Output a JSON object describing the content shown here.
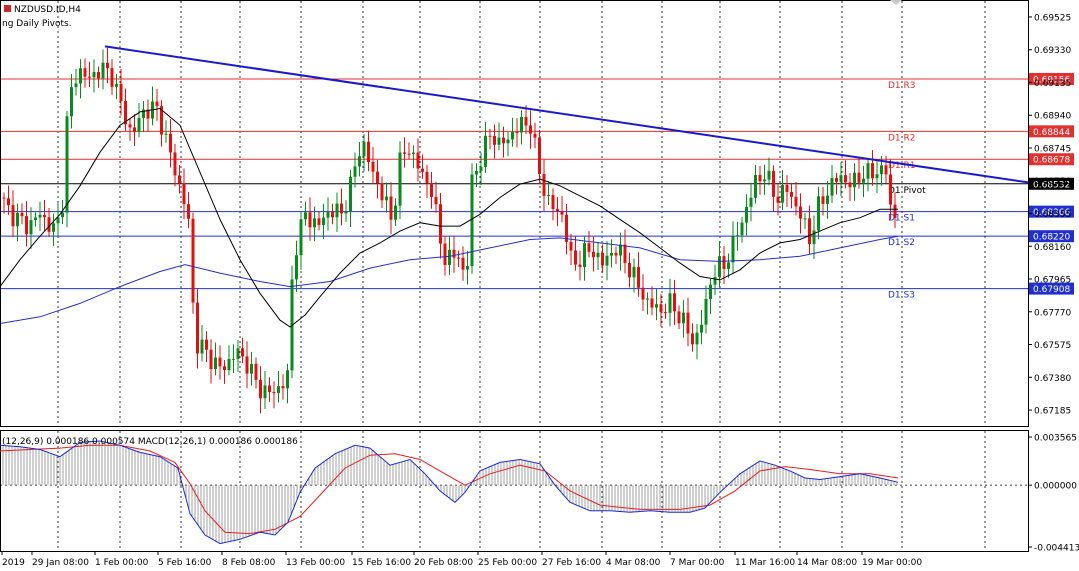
{
  "window": {
    "symbol_title": "NZDUSD.ID,H4",
    "indicator_title": "ng Daily Pivots."
  },
  "colors": {
    "background": "#ffffff",
    "bull_candle": "#0a8a1e",
    "bear_candle": "#e01010",
    "resistance_line": "#e03030",
    "support_line": "#2030d0",
    "pivot_line": "#000000",
    "trendline": "#1a1ac8",
    "ma_fast": "#000000",
    "ma_slow": "#2430c0",
    "macd_line": "#1a2ad0",
    "signal_line": "#e02020",
    "histogram": "#a0a0a0"
  },
  "chart_data": [
    {
      "type": "candlestick",
      "title": "NZDUSD.ID,H4",
      "ylim": [
        0.6709,
        0.6962
      ],
      "y_ticks": [
        "0.69525",
        "0.69330",
        "0.69135",
        "0.68940",
        "0.68745",
        "0.68550",
        "0.68355",
        "0.68160",
        "0.67965",
        "0.67770",
        "0.67575",
        "0.67380",
        "0.67185"
      ],
      "x_tick_labels": [
        "2019",
        "29 Jan 08:00",
        "1 Feb 00:00",
        "5 Feb 16:00",
        "8 Feb 08:00",
        "13 Feb 00:00",
        "15 Feb 16:00",
        "20 Feb 08:00",
        "25 Feb 00:00",
        "27 Feb 16:00",
        "4 Mar 08:00",
        "7 Mar 00:00",
        "11 Mar 16:00",
        "14 Mar 08:00",
        "19 Mar 00:00"
      ],
      "price_path": [
        [
          0,
          0.6845
        ],
        [
          8,
          0.6838
        ],
        [
          18,
          0.6832
        ],
        [
          28,
          0.6828
        ],
        [
          40,
          0.6835
        ],
        [
          55,
          0.6825
        ],
        [
          62,
          0.6838
        ],
        [
          68,
          0.69
        ],
        [
          78,
          0.6922
        ],
        [
          88,
          0.6915
        ],
        [
          100,
          0.6922
        ],
        [
          112,
          0.6918
        ],
        [
          122,
          0.6898
        ],
        [
          132,
          0.6882
        ],
        [
          145,
          0.6898
        ],
        [
          158,
          0.6897
        ],
        [
          168,
          0.6875
        ],
        [
          178,
          0.6855
        ],
        [
          188,
          0.6835
        ],
        [
          195,
          0.676
        ],
        [
          210,
          0.675
        ],
        [
          222,
          0.6742
        ],
        [
          235,
          0.6753
        ],
        [
          246,
          0.6748
        ],
        [
          258,
          0.6732
        ],
        [
          272,
          0.6728
        ],
        [
          288,
          0.6738
        ],
        [
          293,
          0.681
        ],
        [
          305,
          0.6835
        ],
        [
          318,
          0.6828
        ],
        [
          330,
          0.6838
        ],
        [
          342,
          0.6835
        ],
        [
          352,
          0.6855
        ],
        [
          362,
          0.688
        ],
        [
          372,
          0.686
        ],
        [
          382,
          0.6848
        ],
        [
          393,
          0.6828
        ],
        [
          398,
          0.6865
        ],
        [
          410,
          0.6875
        ],
        [
          422,
          0.6858
        ],
        [
          432,
          0.685
        ],
        [
          442,
          0.6812
        ],
        [
          452,
          0.6808
        ],
        [
          460,
          0.6812
        ],
        [
          466,
          0.679
        ],
        [
          472,
          0.6855
        ],
        [
          482,
          0.687
        ],
        [
          492,
          0.6885
        ],
        [
          500,
          0.6875
        ],
        [
          510,
          0.6882
        ],
        [
          520,
          0.6888
        ],
        [
          530,
          0.689
        ],
        [
          540,
          0.6858
        ],
        [
          550,
          0.684
        ],
        [
          562,
          0.6835
        ],
        [
          572,
          0.6805
        ],
        [
          582,
          0.681
        ],
        [
          592,
          0.6815
        ],
        [
          602,
          0.6805
        ],
        [
          614,
          0.6815
        ],
        [
          625,
          0.6808
        ],
        [
          636,
          0.6795
        ],
        [
          648,
          0.6782
        ],
        [
          660,
          0.6778
        ],
        [
          672,
          0.6782
        ],
        [
          684,
          0.677
        ],
        [
          694,
          0.6758
        ],
        [
          704,
          0.6775
        ],
        [
          712,
          0.68
        ],
        [
          724,
          0.6805
        ],
        [
          734,
          0.6818
        ],
        [
          746,
          0.6838
        ],
        [
          756,
          0.6855
        ],
        [
          764,
          0.686
        ],
        [
          776,
          0.6845
        ],
        [
          788,
          0.685
        ],
        [
          800,
          0.6835
        ],
        [
          810,
          0.682
        ],
        [
          818,
          0.6838
        ],
        [
          828,
          0.685
        ],
        [
          840,
          0.6858
        ],
        [
          852,
          0.6852
        ],
        [
          862,
          0.686
        ],
        [
          870,
          0.6858
        ],
        [
          878,
          0.6862
        ],
        [
          886,
          0.686
        ],
        [
          892,
          0.6832
        ],
        [
          898,
          0.6838
        ]
      ],
      "sma_fast_path": [
        [
          0,
          0.6792
        ],
        [
          20,
          0.6808
        ],
        [
          40,
          0.6822
        ],
        [
          60,
          0.6835
        ],
        [
          80,
          0.6852
        ],
        [
          100,
          0.6872
        ],
        [
          120,
          0.6888
        ],
        [
          140,
          0.6896
        ],
        [
          160,
          0.6898
        ],
        [
          180,
          0.6888
        ],
        [
          200,
          0.686
        ],
        [
          220,
          0.6832
        ],
        [
          240,
          0.6808
        ],
        [
          260,
          0.6788
        ],
        [
          280,
          0.6772
        ],
        [
          290,
          0.6768
        ],
        [
          305,
          0.6775
        ],
        [
          320,
          0.6786
        ],
        [
          340,
          0.68
        ],
        [
          360,
          0.6812
        ],
        [
          380,
          0.6818
        ],
        [
          400,
          0.6825
        ],
        [
          420,
          0.683
        ],
        [
          440,
          0.6828
        ],
        [
          460,
          0.6828
        ],
        [
          480,
          0.6835
        ],
        [
          500,
          0.6845
        ],
        [
          520,
          0.6853
        ],
        [
          540,
          0.6856
        ],
        [
          560,
          0.6852
        ],
        [
          580,
          0.6846
        ],
        [
          600,
          0.684
        ],
        [
          620,
          0.6832
        ],
        [
          640,
          0.6824
        ],
        [
          660,
          0.6815
        ],
        [
          680,
          0.6806
        ],
        [
          700,
          0.6798
        ],
        [
          720,
          0.6796
        ],
        [
          740,
          0.6802
        ],
        [
          760,
          0.6812
        ],
        [
          780,
          0.6818
        ],
        [
          800,
          0.682
        ],
        [
          820,
          0.6825
        ],
        [
          840,
          0.683
        ],
        [
          860,
          0.6833
        ],
        [
          880,
          0.6838
        ],
        [
          898,
          0.6838
        ]
      ],
      "sma_slow_path": [
        [
          0,
          0.677
        ],
        [
          40,
          0.6774
        ],
        [
          80,
          0.6782
        ],
        [
          120,
          0.6792
        ],
        [
          160,
          0.6801
        ],
        [
          185,
          0.6805
        ],
        [
          220,
          0.68
        ],
        [
          260,
          0.6795
        ],
        [
          290,
          0.6792
        ],
        [
          330,
          0.6795
        ],
        [
          370,
          0.6803
        ],
        [
          410,
          0.6808
        ],
        [
          450,
          0.681
        ],
        [
          490,
          0.6815
        ],
        [
          530,
          0.682
        ],
        [
          560,
          0.6821
        ],
        [
          600,
          0.6818
        ],
        [
          640,
          0.6815
        ],
        [
          680,
          0.6808
        ],
        [
          720,
          0.6807
        ],
        [
          760,
          0.6808
        ],
        [
          800,
          0.681
        ],
        [
          840,
          0.6815
        ],
        [
          880,
          0.682
        ],
        [
          898,
          0.6822
        ]
      ],
      "trendline": [
        [
          105,
          0.6935
        ],
        [
          1028,
          0.6854
        ]
      ],
      "pivot_levels": [
        {
          "name": "D1 R3",
          "value": 0.69156,
          "label": "0.69156",
          "kind": "resistance"
        },
        {
          "name": "D1 R2",
          "value": 0.68844,
          "label": "0.68844",
          "kind": "resistance"
        },
        {
          "name": "D1 R1",
          "value": 0.68678,
          "label": "0.68678",
          "kind": "resistance"
        },
        {
          "name": "D1 Pivot",
          "value": 0.68532,
          "label": "0.68532",
          "kind": "pivot"
        },
        {
          "name": "D1 S1",
          "value": 0.68366,
          "label": "0.68366",
          "kind": "support"
        },
        {
          "name": "D1 S2",
          "value": 0.6822,
          "label": "0.68220",
          "kind": "support"
        },
        {
          "name": "D1 S3",
          "value": 0.67908,
          "label": "0.67908",
          "kind": "support"
        }
      ]
    },
    {
      "type": "macd",
      "title": "(12,26,9) 0.000186 0.000574 MACD(12,26,1) 0.000186 0.000186",
      "ylim": [
        -0.00462,
        0.0038
      ],
      "y_ticks": [
        "0.003565",
        "0.000000",
        "-0.004413"
      ],
      "macd_path": [
        [
          0,
          0.0028
        ],
        [
          20,
          0.0027
        ],
        [
          40,
          0.0025
        ],
        [
          60,
          0.002
        ],
        [
          80,
          0.003
        ],
        [
          100,
          0.0031
        ],
        [
          120,
          0.0028
        ],
        [
          140,
          0.0023
        ],
        [
          160,
          0.002
        ],
        [
          178,
          0.0012
        ],
        [
          190,
          -0.002
        ],
        [
          205,
          -0.0035
        ],
        [
          220,
          -0.0041
        ],
        [
          240,
          -0.0038
        ],
        [
          260,
          -0.0033
        ],
        [
          275,
          -0.0035
        ],
        [
          288,
          -0.0026
        ],
        [
          300,
          -0.0005
        ],
        [
          315,
          0.0012
        ],
        [
          335,
          0.0022
        ],
        [
          355,
          0.0028
        ],
        [
          370,
          0.0026
        ],
        [
          390,
          0.0014
        ],
        [
          410,
          0.0018
        ],
        [
          425,
          0.0008
        ],
        [
          440,
          -0.0004
        ],
        [
          455,
          -0.0012
        ],
        [
          465,
          -0.0005
        ],
        [
          480,
          0.001
        ],
        [
          500,
          0.0016
        ],
        [
          520,
          0.0018
        ],
        [
          540,
          0.0015
        ],
        [
          555,
          0.0
        ],
        [
          570,
          -0.0012
        ],
        [
          590,
          -0.0018
        ],
        [
          610,
          -0.0018
        ],
        [
          630,
          -0.0019
        ],
        [
          650,
          -0.0018
        ],
        [
          670,
          -0.0019
        ],
        [
          690,
          -0.0019
        ],
        [
          705,
          -0.0016
        ],
        [
          720,
          -0.0005
        ],
        [
          740,
          0.0008
        ],
        [
          760,
          0.0017
        ],
        [
          775,
          0.0014
        ],
        [
          790,
          0.001
        ],
        [
          805,
          0.0005
        ],
        [
          820,
          0.0004
        ],
        [
          840,
          0.0006
        ],
        [
          860,
          0.0008
        ],
        [
          880,
          0.0005
        ],
        [
          898,
          0.0002
        ]
      ],
      "signal_path": [
        [
          0,
          0.0024
        ],
        [
          30,
          0.0025
        ],
        [
          60,
          0.0026
        ],
        [
          90,
          0.0028
        ],
        [
          120,
          0.0028
        ],
        [
          150,
          0.0024
        ],
        [
          175,
          0.0016
        ],
        [
          190,
          0.0001
        ],
        [
          205,
          -0.0018
        ],
        [
          225,
          -0.0033
        ],
        [
          250,
          -0.0034
        ],
        [
          275,
          -0.0031
        ],
        [
          300,
          -0.0022
        ],
        [
          320,
          -0.0007
        ],
        [
          345,
          0.0012
        ],
        [
          370,
          0.0021
        ],
        [
          395,
          0.0022
        ],
        [
          420,
          0.0018
        ],
        [
          445,
          0.0008
        ],
        [
          465,
          0.0
        ],
        [
          490,
          0.0008
        ],
        [
          520,
          0.0014
        ],
        [
          545,
          0.001
        ],
        [
          570,
          -0.0004
        ],
        [
          600,
          -0.0014
        ],
        [
          640,
          -0.0017
        ],
        [
          680,
          -0.0017
        ],
        [
          710,
          -0.0014
        ],
        [
          735,
          -0.0004
        ],
        [
          760,
          0.001
        ],
        [
          785,
          0.0013
        ],
        [
          810,
          0.0011
        ],
        [
          840,
          0.0008
        ],
        [
          870,
          0.0008
        ],
        [
          898,
          0.0005
        ]
      ]
    }
  ]
}
